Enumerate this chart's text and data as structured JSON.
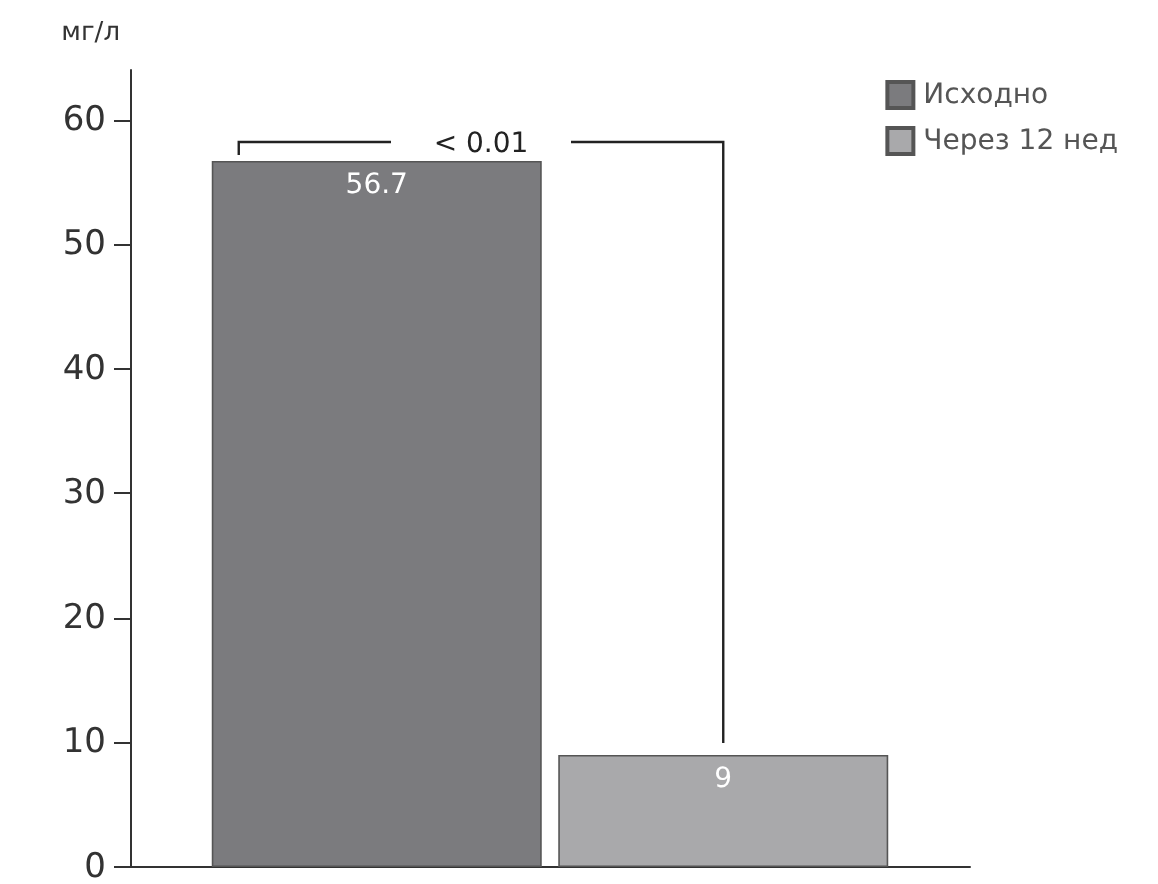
{
  "chart_data": {
    "type": "bar",
    "ylabel": "мг/л",
    "categories": [
      null
    ],
    "series": [
      {
        "name": "Исходно",
        "color": "#7b7b7e",
        "values": [
          56.7
        ]
      },
      {
        "name": "Через 12 нед",
        "color": "#a9a9ab",
        "values": [
          9
        ]
      }
    ],
    "ylim": [
      0,
      64
    ],
    "yticks": [
      0,
      10,
      20,
      30,
      40,
      50,
      60
    ],
    "grid": false,
    "legend": "top right",
    "data_labels": true,
    "annotations": [
      "< 0.01"
    ]
  }
}
